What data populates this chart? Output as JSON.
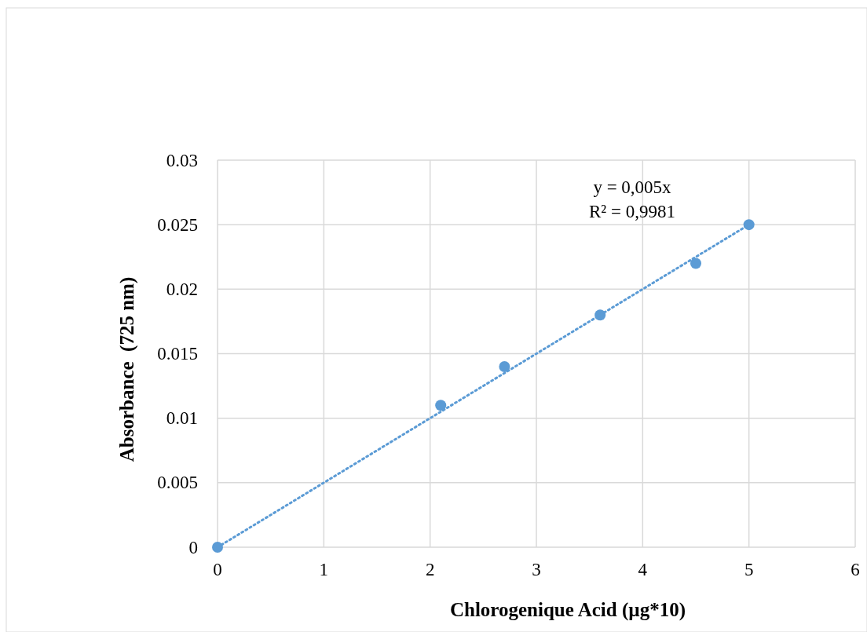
{
  "chart_data": {
    "type": "scatter",
    "xlabel": "Chlorogenique Acid (µg*10)",
    "ylabel": "Absorbance  (725 nm)",
    "annotations": [
      "y = 0,005x",
      "R² = 0,9981"
    ],
    "xlim": [
      0,
      6
    ],
    "xticks": [
      0,
      1,
      2,
      3,
      4,
      5,
      6
    ],
    "ylim": [
      0,
      0.03
    ],
    "yticks": [
      0,
      0.005,
      0.01,
      0.015,
      0.02,
      0.025,
      0.03
    ],
    "grid": true,
    "series": [
      {
        "type": "scatter",
        "color": "#5b9bd5",
        "marker": "circle",
        "x": [
          0,
          2.1,
          2.7,
          3.6,
          4.5,
          5
        ],
        "values": [
          0,
          0.011,
          0.014,
          0.018,
          0.022,
          0.025
        ]
      },
      {
        "type": "line",
        "color": "#5b9bd5",
        "marker": "none",
        "line_style": "dotted",
        "x": [
          0,
          5
        ],
        "values": [
          0,
          0.025
        ]
      }
    ]
  }
}
